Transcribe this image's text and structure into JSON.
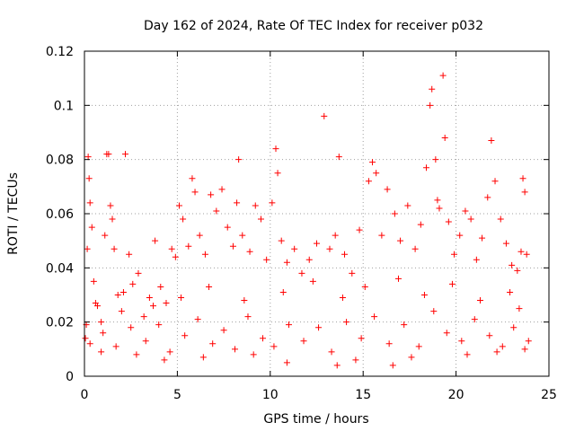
{
  "chart_data": {
    "type": "scatter",
    "title": "Day 162 of 2024, Rate Of TEC Index for receiver p032",
    "xlabel": "GPS time / hours",
    "ylabel": "ROTI / TECUs",
    "xlim": [
      0,
      25
    ],
    "ylim": [
      0,
      0.12
    ],
    "x_ticks": [
      0,
      5,
      10,
      15,
      20,
      25
    ],
    "x_tick_labels": [
      "0",
      "5",
      "10",
      "15",
      "20",
      "25"
    ],
    "y_ticks": [
      0,
      0.02,
      0.04,
      0.06,
      0.08,
      0.1,
      0.12
    ],
    "y_tick_labels": [
      "0",
      "0.02",
      "0.04",
      "0.06",
      "0.08",
      "0.1",
      "0.12"
    ],
    "grid": true,
    "marker": "plus",
    "color": "#ff0000",
    "series": [
      {
        "name": "ROTI",
        "points": [
          [
            0.05,
            0.014
          ],
          [
            0.1,
            0.019
          ],
          [
            0.15,
            0.047
          ],
          [
            0.2,
            0.081
          ],
          [
            0.25,
            0.073
          ],
          [
            0.3,
            0.064
          ],
          [
            0.4,
            0.055
          ],
          [
            0.5,
            0.035
          ],
          [
            0.7,
            0.026
          ],
          [
            0.9,
            0.02
          ],
          [
            1.1,
            0.052
          ],
          [
            1.2,
            0.082
          ],
          [
            1.3,
            0.082
          ],
          [
            1.4,
            0.063
          ],
          [
            1.5,
            0.058
          ],
          [
            1.6,
            0.047
          ],
          [
            1.8,
            0.03
          ],
          [
            2.0,
            0.024
          ],
          [
            2.2,
            0.082
          ],
          [
            2.4,
            0.045
          ],
          [
            2.6,
            0.034
          ],
          [
            2.9,
            0.038
          ],
          [
            3.2,
            0.022
          ],
          [
            3.5,
            0.029
          ],
          [
            3.8,
            0.05
          ],
          [
            4.1,
            0.033
          ],
          [
            4.4,
            0.027
          ],
          [
            4.7,
            0.047
          ],
          [
            4.9,
            0.044
          ],
          [
            5.1,
            0.063
          ],
          [
            5.3,
            0.058
          ],
          [
            5.6,
            0.048
          ],
          [
            5.8,
            0.073
          ],
          [
            5.95,
            0.068
          ],
          [
            6.2,
            0.052
          ],
          [
            6.5,
            0.045
          ],
          [
            6.8,
            0.067
          ],
          [
            7.1,
            0.061
          ],
          [
            7.4,
            0.069
          ],
          [
            7.7,
            0.055
          ],
          [
            8.0,
            0.048
          ],
          [
            8.2,
            0.064
          ],
          [
            8.3,
            0.08
          ],
          [
            8.5,
            0.052
          ],
          [
            8.9,
            0.046
          ],
          [
            9.2,
            0.063
          ],
          [
            9.5,
            0.058
          ],
          [
            9.8,
            0.043
          ],
          [
            10.1,
            0.064
          ],
          [
            10.3,
            0.084
          ],
          [
            10.4,
            0.075
          ],
          [
            10.6,
            0.05
          ],
          [
            10.9,
            0.042
          ],
          [
            11.3,
            0.047
          ],
          [
            11.7,
            0.038
          ],
          [
            12.1,
            0.043
          ],
          [
            12.5,
            0.049
          ],
          [
            12.9,
            0.096
          ],
          [
            13.2,
            0.047
          ],
          [
            13.5,
            0.052
          ],
          [
            13.7,
            0.081
          ],
          [
            14.0,
            0.045
          ],
          [
            14.4,
            0.038
          ],
          [
            14.8,
            0.054
          ],
          [
            15.3,
            0.072
          ],
          [
            15.5,
            0.079
          ],
          [
            15.7,
            0.075
          ],
          [
            16.0,
            0.052
          ],
          [
            16.3,
            0.069
          ],
          [
            16.7,
            0.06
          ],
          [
            17.0,
            0.05
          ],
          [
            17.4,
            0.063
          ],
          [
            17.8,
            0.047
          ],
          [
            18.1,
            0.056
          ],
          [
            18.4,
            0.077
          ],
          [
            18.6,
            0.1
          ],
          [
            18.7,
            0.106
          ],
          [
            18.9,
            0.08
          ],
          [
            19.0,
            0.065
          ],
          [
            19.1,
            0.062
          ],
          [
            19.3,
            0.111
          ],
          [
            19.4,
            0.088
          ],
          [
            19.6,
            0.057
          ],
          [
            19.9,
            0.045
          ],
          [
            20.2,
            0.052
          ],
          [
            20.5,
            0.061
          ],
          [
            20.8,
            0.058
          ],
          [
            21.1,
            0.043
          ],
          [
            21.4,
            0.051
          ],
          [
            21.7,
            0.066
          ],
          [
            21.9,
            0.087
          ],
          [
            22.1,
            0.072
          ],
          [
            22.4,
            0.058
          ],
          [
            22.7,
            0.049
          ],
          [
            23.0,
            0.041
          ],
          [
            23.3,
            0.039
          ],
          [
            23.5,
            0.046
          ],
          [
            23.6,
            0.073
          ],
          [
            23.7,
            0.068
          ],
          [
            23.8,
            0.045
          ],
          [
            0.3,
            0.012
          ],
          [
            1.0,
            0.016
          ],
          [
            1.7,
            0.011
          ],
          [
            2.5,
            0.018
          ],
          [
            3.3,
            0.013
          ],
          [
            4.0,
            0.019
          ],
          [
            4.6,
            0.009
          ],
          [
            5.4,
            0.015
          ],
          [
            6.1,
            0.021
          ],
          [
            6.9,
            0.012
          ],
          [
            7.5,
            0.017
          ],
          [
            8.1,
            0.01
          ],
          [
            8.8,
            0.022
          ],
          [
            9.6,
            0.014
          ],
          [
            10.2,
            0.011
          ],
          [
            11.0,
            0.019
          ],
          [
            11.8,
            0.013
          ],
          [
            12.6,
            0.018
          ],
          [
            13.3,
            0.009
          ],
          [
            14.1,
            0.02
          ],
          [
            14.9,
            0.014
          ],
          [
            15.6,
            0.022
          ],
          [
            16.4,
            0.012
          ],
          [
            17.2,
            0.019
          ],
          [
            18.0,
            0.011
          ],
          [
            18.8,
            0.024
          ],
          [
            19.5,
            0.016
          ],
          [
            20.3,
            0.013
          ],
          [
            21.0,
            0.021
          ],
          [
            21.8,
            0.015
          ],
          [
            22.5,
            0.011
          ],
          [
            23.1,
            0.018
          ],
          [
            23.9,
            0.013
          ],
          [
            0.6,
            0.027
          ],
          [
            2.1,
            0.031
          ],
          [
            3.7,
            0.026
          ],
          [
            5.2,
            0.029
          ],
          [
            6.7,
            0.033
          ],
          [
            8.6,
            0.028
          ],
          [
            10.7,
            0.031
          ],
          [
            12.3,
            0.035
          ],
          [
            13.9,
            0.029
          ],
          [
            15.1,
            0.033
          ],
          [
            16.9,
            0.036
          ],
          [
            18.3,
            0.03
          ],
          [
            19.8,
            0.034
          ],
          [
            21.3,
            0.028
          ],
          [
            22.9,
            0.031
          ],
          [
            23.4,
            0.025
          ],
          [
            0.9,
            0.009
          ],
          [
            2.8,
            0.008
          ],
          [
            4.3,
            0.006
          ],
          [
            6.4,
            0.007
          ],
          [
            9.1,
            0.008
          ],
          [
            10.9,
            0.005
          ],
          [
            13.6,
            0.004
          ],
          [
            14.6,
            0.006
          ],
          [
            16.6,
            0.004
          ],
          [
            17.6,
            0.007
          ],
          [
            20.6,
            0.008
          ],
          [
            22.2,
            0.009
          ],
          [
            23.7,
            0.01
          ]
        ]
      }
    ]
  }
}
